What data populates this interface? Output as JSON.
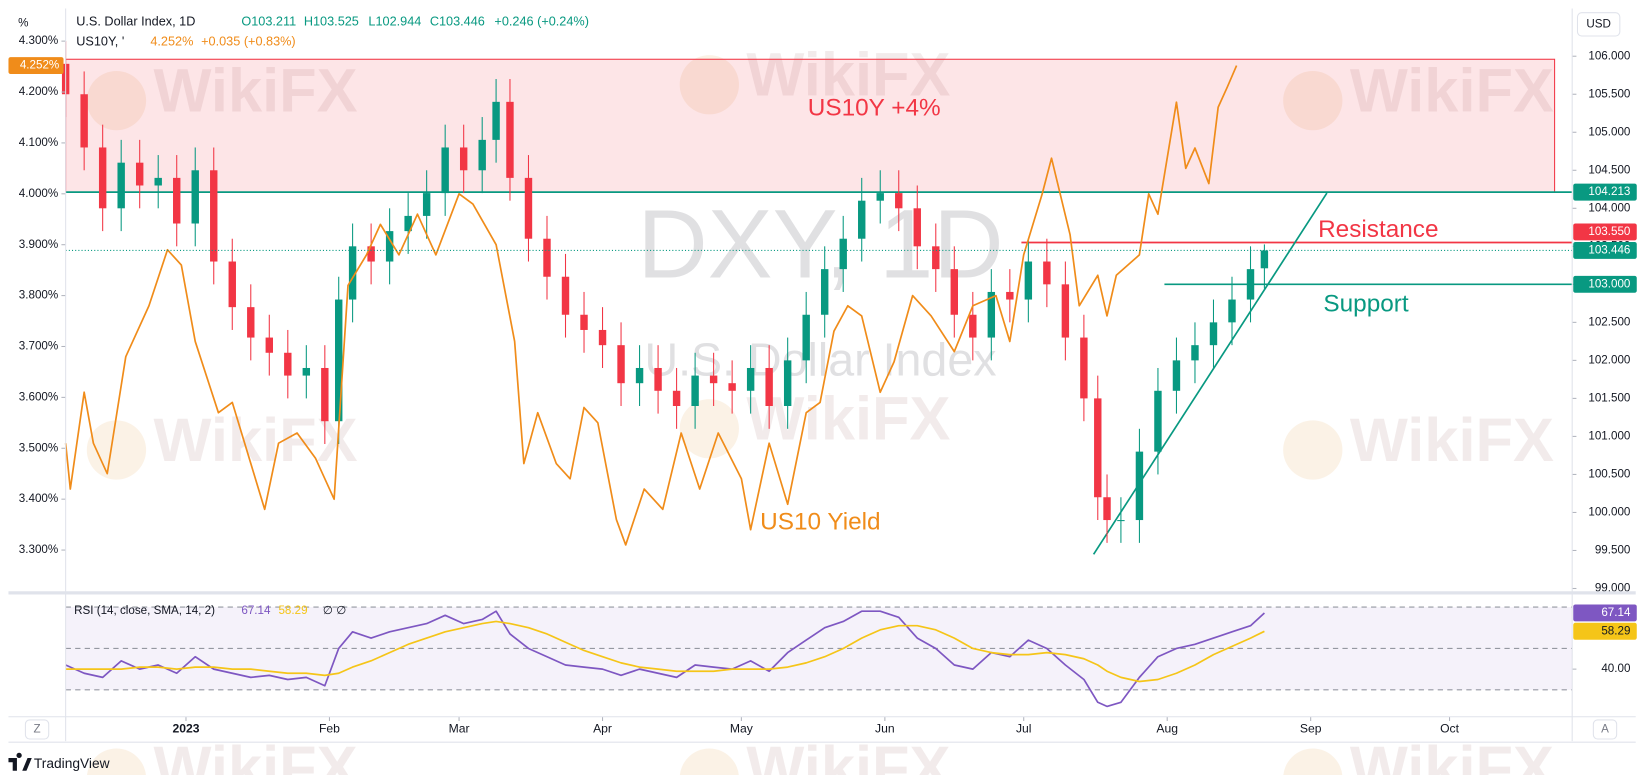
{
  "header": {
    "symbol": "U.S. Dollar Index, 1D",
    "open": "O103.211",
    "high": "H103.525",
    "low": "L102.944",
    "close": "C103.446",
    "change": "+0.246 (+0.24%)",
    "symbol2": "US10Y, '",
    "value2": "4.252%",
    "change2": "+0.035 (+0.83%)"
  },
  "left_axis_unit": "%",
  "right_axis_unit": "USD",
  "watermark_text": "WikiFX",
  "footer": {
    "brand": "TradingView",
    "left_button": "Z",
    "right_button": "A"
  },
  "chart_data": [
    {
      "type": "candlestick",
      "title": "DXY, 1D",
      "subtitle": "U.S. Dollar Index",
      "x": [
        -26,
        -22,
        -18,
        -14,
        -10,
        -6,
        -2,
        2,
        6,
        10,
        14,
        18,
        22,
        26,
        30,
        33,
        36,
        40,
        44,
        48,
        52,
        56,
        60,
        64,
        67,
        70,
        74,
        78,
        82,
        86,
        90,
        94,
        98,
        102,
        106,
        110,
        114,
        118,
        122,
        126,
        130,
        134,
        138,
        142,
        146,
        150,
        154,
        158,
        162,
        166,
        170,
        174,
        178,
        182,
        186,
        190,
        194,
        197,
        199,
        202,
        206,
        210,
        214,
        218,
        222,
        226,
        230,
        233
      ],
      "series": [
        {
          "axis": "y2",
          "up_color": "#089981",
          "down_color": "#f23645",
          "open": [
            105.9,
            105.5,
            104.8,
            104.0,
            104.6,
            104.3,
            104.4,
            103.8,
            104.5,
            103.3,
            102.7,
            102.3,
            102.1,
            101.8,
            101.9,
            101.2,
            102.8,
            103.5,
            103.3,
            103.7,
            103.9,
            104.2,
            104.8,
            104.5,
            104.9,
            105.4,
            104.4,
            103.6,
            103.1,
            102.6,
            102.4,
            102.2,
            101.7,
            101.9,
            101.6,
            101.4,
            101.8,
            101.7,
            101.6,
            101.9,
            101.4,
            102.0,
            102.6,
            103.2,
            103.6,
            104.1,
            104.2,
            104.0,
            103.5,
            103.2,
            102.6,
            102.3,
            102.9,
            102.8,
            103.3,
            103.0,
            102.3,
            101.5,
            100.2,
            99.9,
            99.9,
            100.8,
            101.6,
            102.0,
            102.2,
            102.5,
            102.8,
            103.211
          ],
          "high": [
            106.2,
            105.8,
            105.1,
            104.9,
            104.9,
            104.7,
            104.7,
            104.8,
            104.8,
            103.6,
            103.0,
            102.6,
            102.4,
            102.2,
            102.2,
            103.1,
            103.8,
            103.8,
            104.0,
            104.2,
            104.5,
            105.1,
            105.1,
            105.2,
            105.7,
            105.7,
            104.7,
            103.9,
            103.4,
            102.9,
            102.7,
            102.5,
            102.2,
            102.2,
            101.9,
            102.1,
            102.1,
            102.0,
            102.2,
            102.2,
            102.3,
            102.9,
            103.5,
            103.9,
            104.4,
            104.5,
            104.5,
            104.3,
            103.8,
            103.5,
            102.9,
            103.2,
            103.2,
            103.6,
            103.6,
            103.3,
            102.6,
            101.8,
            100.5,
            100.2,
            101.1,
            101.9,
            102.3,
            102.5,
            102.8,
            103.1,
            103.5,
            103.525
          ],
          "low": [
            105.2,
            104.5,
            103.7,
            103.7,
            104.0,
            104.0,
            103.5,
            103.5,
            103.0,
            102.4,
            102.0,
            101.8,
            101.5,
            101.5,
            100.9,
            100.9,
            102.5,
            103.0,
            103.0,
            103.4,
            103.6,
            103.9,
            104.2,
            104.2,
            104.6,
            104.1,
            103.3,
            102.8,
            102.3,
            102.1,
            101.9,
            101.4,
            101.4,
            101.3,
            101.1,
            101.1,
            101.4,
            101.3,
            101.3,
            101.1,
            101.1,
            101.7,
            102.3,
            102.9,
            103.3,
            103.8,
            103.7,
            103.2,
            102.9,
            102.3,
            102.0,
            102.0,
            102.5,
            102.5,
            102.7,
            102.0,
            101.2,
            99.9,
            99.6,
            99.6,
            99.6,
            100.5,
            101.3,
            101.7,
            101.9,
            102.2,
            102.5,
            102.944
          ],
          "close": [
            105.5,
            104.8,
            104.0,
            104.6,
            104.3,
            104.4,
            103.8,
            104.5,
            103.3,
            102.7,
            102.3,
            102.1,
            101.8,
            101.9,
            101.2,
            102.8,
            103.5,
            103.3,
            103.7,
            103.9,
            104.2,
            104.8,
            104.5,
            104.9,
            105.4,
            104.4,
            103.6,
            103.1,
            102.6,
            102.4,
            102.2,
            101.7,
            101.9,
            101.6,
            101.4,
            101.8,
            101.7,
            101.6,
            101.9,
            101.4,
            102.0,
            102.6,
            103.2,
            103.6,
            104.1,
            104.2,
            104.0,
            103.5,
            103.2,
            102.6,
            102.3,
            102.9,
            102.8,
            103.3,
            103.0,
            102.3,
            101.5,
            100.2,
            99.9,
            99.9,
            100.8,
            101.6,
            102.0,
            102.2,
            102.5,
            102.8,
            103.2,
            103.446
          ]
        },
        {
          "type": "line",
          "axis": "y",
          "color": "#f08c1a",
          "x": [
            -26,
            -25,
            -22,
            -20,
            -17,
            -13,
            -8,
            -4,
            -1,
            2,
            7,
            10,
            14,
            17,
            20,
            24,
            28,
            32,
            35,
            39,
            42,
            46,
            50,
            54,
            59,
            62,
            67,
            71,
            73,
            76,
            80,
            83,
            86,
            89,
            93,
            95,
            99,
            103,
            107,
            111,
            115,
            120,
            122,
            126,
            130,
            134,
            137,
            140,
            143,
            146,
            150,
            153,
            157,
            161,
            166,
            170,
            175,
            178,
            181,
            185,
            187,
            191,
            193,
            197,
            199,
            201,
            206,
            208,
            210,
            214,
            216,
            218,
            221,
            223,
            225,
            227
          ],
          "values": [
            3.51,
            3.42,
            3.61,
            3.51,
            3.45,
            3.68,
            3.78,
            3.89,
            3.86,
            3.71,
            3.57,
            3.59,
            3.47,
            3.38,
            3.51,
            3.53,
            3.48,
            3.4,
            3.82,
            3.88,
            3.94,
            3.88,
            3.96,
            3.88,
            4.0,
            3.98,
            3.9,
            3.71,
            3.47,
            3.57,
            3.47,
            3.44,
            3.58,
            3.55,
            3.36,
            3.31,
            3.42,
            3.38,
            3.53,
            3.42,
            3.53,
            3.44,
            3.34,
            3.51,
            3.39,
            3.57,
            3.59,
            3.73,
            3.78,
            3.76,
            3.61,
            3.67,
            3.8,
            3.76,
            3.69,
            3.78,
            3.8,
            3.71,
            3.88,
            4.0,
            4.07,
            3.92,
            3.78,
            3.84,
            3.76,
            3.84,
            3.88,
            4.0,
            3.96,
            4.18,
            4.05,
            4.09,
            4.02,
            4.17,
            4.21,
            4.252
          ]
        }
      ],
      "xlim": [
        -26,
        299.5
      ],
      "xticks": [
        {
          "value": 0,
          "label": "2023"
        },
        {
          "value": 31,
          "label": "Feb"
        },
        {
          "value": 59,
          "label": "Mar"
        },
        {
          "value": 90,
          "label": "Apr"
        },
        {
          "value": 120,
          "label": "May"
        },
        {
          "value": 151,
          "label": "Jun"
        },
        {
          "value": 181,
          "label": "Jul"
        },
        {
          "value": 212,
          "label": "Aug"
        },
        {
          "value": 243,
          "label": "Sep"
        },
        {
          "value": 273,
          "label": "Oct"
        }
      ],
      "ylim": [
        3.22,
        4.36
      ],
      "yticks": [
        {
          "value": 3.3,
          "label": "3.300%"
        },
        {
          "value": 3.4,
          "label": "3.400%"
        },
        {
          "value": 3.5,
          "label": "3.500%"
        },
        {
          "value": 3.6,
          "label": "3.600%"
        },
        {
          "value": 3.7,
          "label": "3.700%"
        },
        {
          "value": 3.8,
          "label": "3.800%"
        },
        {
          "value": 3.9,
          "label": "3.900%"
        },
        {
          "value": 4.0,
          "label": "4.000%"
        },
        {
          "value": 4.1,
          "label": "4.100%"
        },
        {
          "value": 4.2,
          "label": "4.200%"
        },
        {
          "value": 4.3,
          "label": "4.300%"
        }
      ],
      "y2lim": [
        98.97,
        106.6
      ],
      "y2ticks": [
        {
          "value": 99,
          "label": "99.000"
        },
        {
          "value": 99.5,
          "label": "99.500"
        },
        {
          "value": 100,
          "label": "100.000"
        },
        {
          "value": 100.5,
          "label": "100.500"
        },
        {
          "value": 101,
          "label": "101.000"
        },
        {
          "value": 101.5,
          "label": "101.500"
        },
        {
          "value": 102,
          "label": "102.000"
        },
        {
          "value": 102.5,
          "label": "102.500"
        },
        {
          "value": 103,
          "label": "103.000"
        },
        {
          "value": 103.5,
          "label": "103.500"
        },
        {
          "value": 104,
          "label": "104.000"
        },
        {
          "value": 104.5,
          "label": "104.500"
        },
        {
          "value": 105,
          "label": "105.000"
        },
        {
          "value": 105.5,
          "label": "105.500"
        },
        {
          "value": 106,
          "label": "106.000"
        }
      ],
      "grid": false,
      "last_price_line": true,
      "annotations": [
        {
          "kind": "zone",
          "label": "US10Y +4%",
          "x0": -26,
          "x1": 295.7,
          "y0": 104.213,
          "y1": 105.96,
          "color": "#f23645"
        },
        {
          "kind": "hline",
          "x0": -26,
          "value": 104.213,
          "color": "#089981"
        },
        {
          "kind": "hline",
          "label": "Resistance",
          "x0": 180.5,
          "value": 103.55,
          "color": "#f23645"
        },
        {
          "kind": "hline",
          "label": "Support",
          "x0": 211.4,
          "value": 103.0,
          "color": "#089981"
        },
        {
          "kind": "trend",
          "x0": 196.1,
          "y0": 99.45,
          "x1": 246.5,
          "y1": 104.2,
          "color": "#089981"
        },
        {
          "kind": "text",
          "label": "US10 Yield",
          "color": "#f08c1a"
        }
      ],
      "price_labels": [
        {
          "value": 104.213,
          "label": "104.213",
          "color": "#089981"
        },
        {
          "value": 103.55,
          "label": "103.550",
          "color": "#f23645"
        },
        {
          "value": 103.446,
          "label": "103.446",
          "color": "#089981"
        },
        {
          "value": 103.0,
          "label": "103.000",
          "color": "#089981"
        }
      ],
      "y_price_labels": [
        {
          "value": 4.252,
          "label": "4.252%",
          "color": "#f08c1a"
        }
      ]
    },
    {
      "type": "line",
      "title": "RSI (14, close, SMA, 14, 2)",
      "extra": "∅ ∅",
      "x": [
        -26,
        -22,
        -18,
        -14,
        -10,
        -6,
        -2,
        2,
        6,
        10,
        14,
        18,
        22,
        26,
        30,
        33,
        36,
        40,
        44,
        48,
        52,
        56,
        60,
        64,
        67,
        70,
        74,
        78,
        82,
        86,
        90,
        94,
        98,
        102,
        106,
        110,
        114,
        118,
        122,
        126,
        130,
        134,
        138,
        142,
        146,
        150,
        154,
        158,
        162,
        166,
        170,
        174,
        178,
        182,
        186,
        190,
        194,
        197,
        199,
        202,
        206,
        210,
        214,
        218,
        222,
        226,
        230,
        233
      ],
      "series": [
        {
          "color": "#7e57c2",
          "last_label": "67.14",
          "values": [
            42,
            38,
            36,
            44,
            40,
            42,
            38,
            46,
            40,
            38,
            36,
            37,
            35,
            36,
            32,
            50,
            58,
            55,
            58,
            60,
            62,
            66,
            62,
            64,
            68,
            57,
            50,
            46,
            42,
            41,
            40,
            37,
            40,
            38,
            36,
            42,
            41,
            40,
            44,
            39,
            48,
            54,
            60,
            63,
            68,
            68,
            65,
            55,
            50,
            42,
            40,
            48,
            46,
            54,
            50,
            42,
            35,
            24,
            22,
            24,
            36,
            46,
            50,
            52,
            55,
            58,
            61,
            67.14
          ]
        },
        {
          "color": "#f5c518",
          "last_label": "58.29",
          "values": [
            40,
            40,
            40,
            40,
            41,
            41,
            40,
            41,
            41,
            40,
            40,
            39,
            38,
            38,
            37,
            38,
            41,
            44,
            48,
            52,
            55,
            58,
            60,
            62,
            63,
            62,
            60,
            57,
            53,
            49,
            46,
            43,
            41,
            40,
            39,
            39,
            39,
            40,
            40,
            40,
            41,
            43,
            46,
            50,
            55,
            59,
            61,
            61,
            59,
            55,
            50,
            48,
            47,
            47,
            48,
            47,
            45,
            42,
            39,
            36,
            34,
            35,
            38,
            42,
            47,
            51,
            55,
            58.29
          ]
        }
      ],
      "xlim": [
        -26,
        299.5
      ],
      "ylim": [
        17.5,
        75.3
      ],
      "yticks": [
        {
          "value": 40,
          "label": "40.00"
        }
      ],
      "levels": [
        70,
        50,
        30
      ],
      "band": [
        30,
        70
      ],
      "band_color": "#7e57c2"
    }
  ]
}
